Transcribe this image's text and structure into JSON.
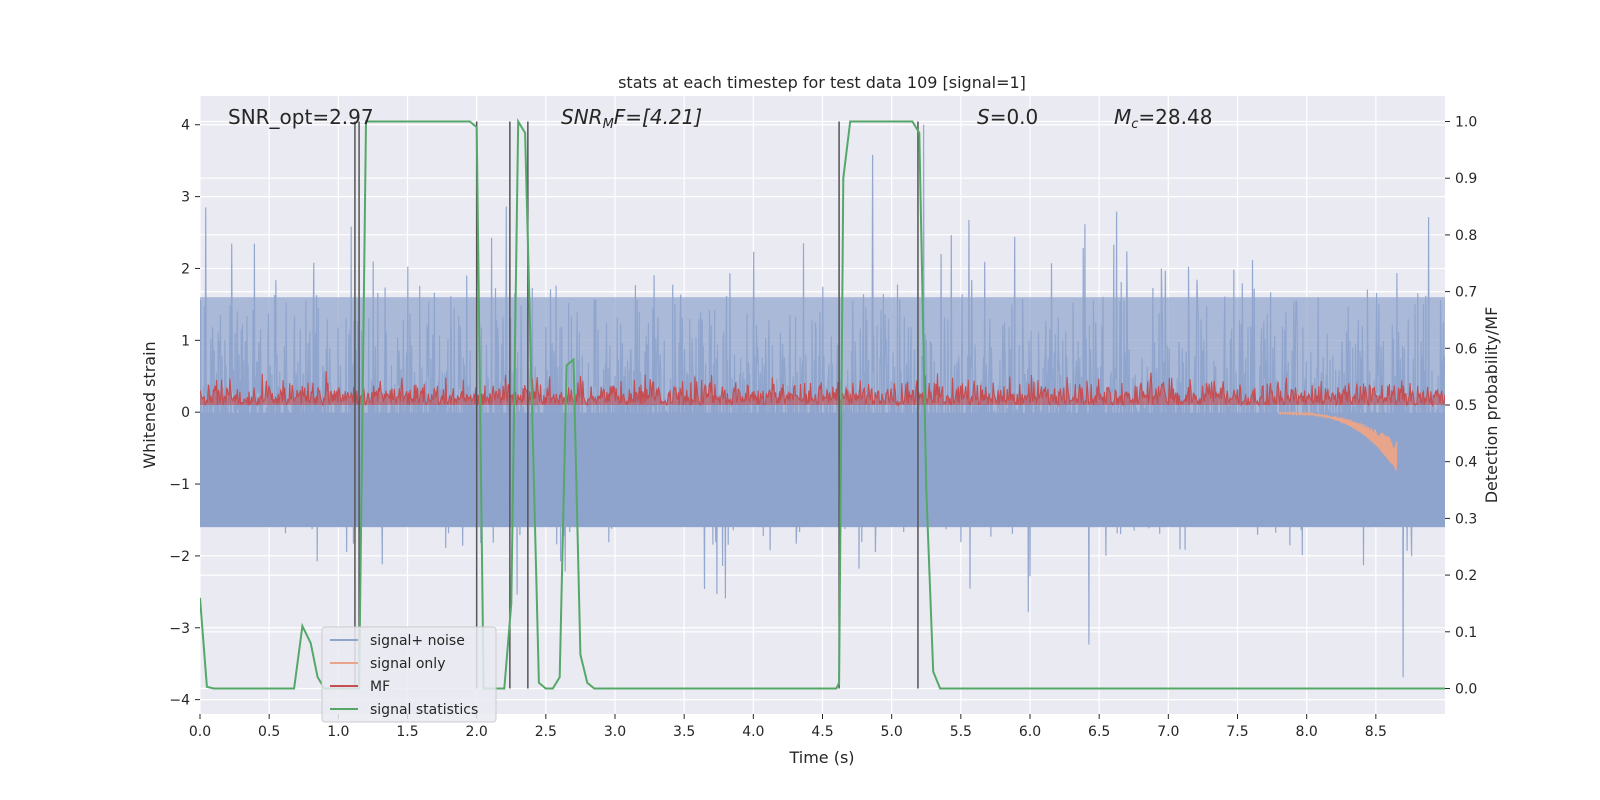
{
  "chart_data": {
    "type": "line",
    "title": "stats at each timestep for test data 109 [signal=1]",
    "xlabel": "Time (s)",
    "ylabel": "Whitened strain",
    "y2label": "Detection probability/MF",
    "xlim": [
      0,
      9.0
    ],
    "ylim": [
      -4.2,
      4.4
    ],
    "y2lim": [
      -0.045,
      1.045
    ],
    "xticks": [
      "0.0",
      "0.5",
      "1.0",
      "1.5",
      "2.0",
      "2.5",
      "3.0",
      "3.5",
      "4.0",
      "4.5",
      "5.0",
      "5.5",
      "6.0",
      "6.5",
      "7.0",
      "7.5",
      "8.0",
      "8.5"
    ],
    "yticks": [
      "4",
      "3",
      "2",
      "1",
      "0",
      "−1",
      "−2",
      "−3",
      "−4"
    ],
    "y2ticks": [
      "1.0",
      "0.9",
      "0.8",
      "0.7",
      "0.6",
      "0.5",
      "0.4",
      "0.3",
      "0.2",
      "0.1",
      "0.0"
    ],
    "grid": true,
    "legend_position": "lower-left",
    "annotations": {
      "snr_opt": "SNR_opt=2.97",
      "snr_mf_label": "SNR",
      "snr_mf_sub": "M",
      "snr_mf_rest": "F=[4.21]",
      "s_label": "S",
      "s_rest": "=0.0",
      "mc_label": "M",
      "mc_sub": "c",
      "mc_rest": "=28.48"
    },
    "series": [
      {
        "name": "signal+ noise",
        "color": "#8fa4cc",
        "amplitude_range": [
          -4.0,
          4.0
        ]
      },
      {
        "name": "signal only",
        "color": "#e8a58a",
        "chirp_end_time": 8.65,
        "chirp_min": -0.8
      },
      {
        "name": "MF",
        "color": "#c44e52",
        "y2_range": [
          0.5,
          0.6
        ]
      },
      {
        "name": "signal statistics",
        "color": "#55a868",
        "x": [
          0.0,
          0.05,
          0.1,
          0.68,
          0.74,
          0.8,
          0.85,
          0.9,
          1.1,
          1.15,
          1.2,
          1.95,
          2.0,
          2.05,
          2.2,
          2.25,
          2.3,
          2.35,
          2.4,
          2.45,
          2.5,
          2.55,
          2.6,
          2.65,
          2.7,
          2.75,
          2.8,
          2.85,
          2.9,
          4.6,
          4.62,
          4.65,
          4.7,
          4.75,
          5.15,
          5.2,
          5.25,
          5.3,
          5.35,
          9.0
        ],
        "y": [
          0.16,
          0.003,
          0.0,
          0.0,
          0.11,
          0.08,
          0.02,
          0.0,
          0.0,
          0.0,
          1.0,
          1.0,
          0.99,
          0.0,
          0.0,
          0.15,
          1.0,
          0.98,
          0.5,
          0.01,
          0.0,
          0.0,
          0.02,
          0.57,
          0.58,
          0.06,
          0.01,
          0.0,
          0.0,
          0.0,
          0.01,
          0.9,
          1.0,
          1.0,
          1.0,
          0.98,
          0.35,
          0.03,
          0.0,
          0.0
        ]
      }
    ],
    "vlines": [
      1.12,
      1.15,
      2.0,
      2.24,
      2.37,
      4.62,
      5.19
    ]
  }
}
